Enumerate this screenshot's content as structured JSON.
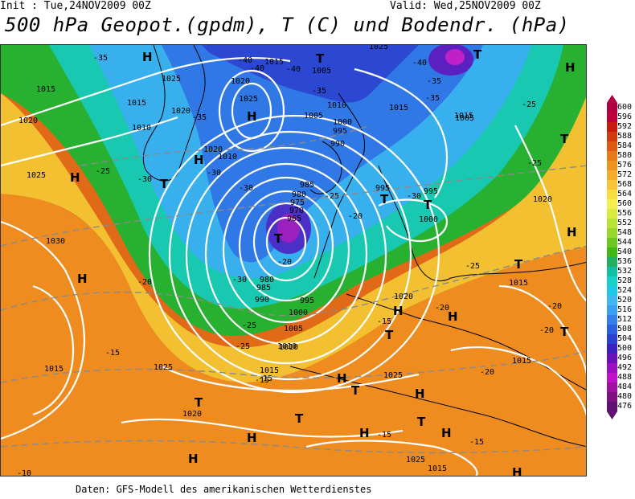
{
  "header": {
    "init_text": "Init : Tue,24NOV2009 00Z",
    "valid_text": "Valid: Wed,25NOV2009 00Z",
    "title": "500 hPa Geopot.(gpdm), T (C) und Bodendr. (hPa)"
  },
  "footer": {
    "source": "Daten: GFS-Modell des amerikanischen Wetterdienstes"
  },
  "legend": {
    "labels": [
      "600",
      "596",
      "592",
      "588",
      "584",
      "580",
      "576",
      "572",
      "568",
      "564",
      "560",
      "556",
      "552",
      "548",
      "544",
      "540",
      "536",
      "532",
      "528",
      "524",
      "520",
      "516",
      "512",
      "508",
      "504",
      "500",
      "496",
      "492",
      "488",
      "484",
      "480",
      "476"
    ],
    "colors": [
      "#b00040",
      "#c0003a",
      "#c81a10",
      "#d23a10",
      "#dc5a14",
      "#e67a18",
      "#ee9420",
      "#f4ac2a",
      "#f8c438",
      "#f8de40",
      "#f4ee50",
      "#d8ec40",
      "#b8e236",
      "#98d82c",
      "#6cc820",
      "#40b818",
      "#20b060",
      "#10c0a0",
      "#18d0c8",
      "#20c8e8",
      "#40b8f0",
      "#3ca0f0",
      "#3480e8",
      "#2c60e0",
      "#2c40d0",
      "#3a20c0",
      "#6a10b8",
      "#9a10c0",
      "#c010c8",
      "#a010a0",
      "#801080",
      "#601070"
    ]
  },
  "map": {
    "pressure_labels": [
      "1015",
      "1025",
      "1015",
      "1020",
      "1010",
      "1015",
      "1020",
      "1025",
      "1025",
      "1020",
      "1015",
      "1010",
      "1010",
      "1005",
      "1015",
      "1005",
      "1000",
      "995",
      "990",
      "985",
      "980",
      "975",
      "970",
      "965",
      "995",
      "995",
      "1000",
      "985",
      "980",
      "990",
      "995",
      "1000",
      "1005",
      "1010",
      "1015",
      "1025",
      "1020",
      "1025",
      "1015",
      "1020",
      "1015",
      "1020",
      "1025",
      "1015",
      "1030",
      "1020",
      "1015",
      "1005",
      "1010",
      "1025"
    ],
    "temp_labels": [
      "-35",
      "-40",
      "-40",
      "-40",
      "-35",
      "-35",
      "-35",
      "-40",
      "-35",
      "-25",
      "-25",
      "-30",
      "-30",
      "-30",
      "-30",
      "-25",
      "-20",
      "-20",
      "-25",
      "-30",
      "-25",
      "-20",
      "-15",
      "-15",
      "-20",
      "-15",
      "-25",
      "-20",
      "-15",
      "-20",
      "-25",
      "-20",
      "-15",
      "-15",
      "-10"
    ],
    "centers": [
      "H",
      "H",
      "H",
      "H",
      "H",
      "T",
      "T",
      "T",
      "T",
      "T",
      "T",
      "T",
      "H",
      "H",
      "H",
      "T",
      "T",
      "H",
      "T",
      "H",
      "H",
      "T",
      "H",
      "T",
      "H",
      "T",
      "H",
      "H",
      "T",
      "H"
    ]
  }
}
